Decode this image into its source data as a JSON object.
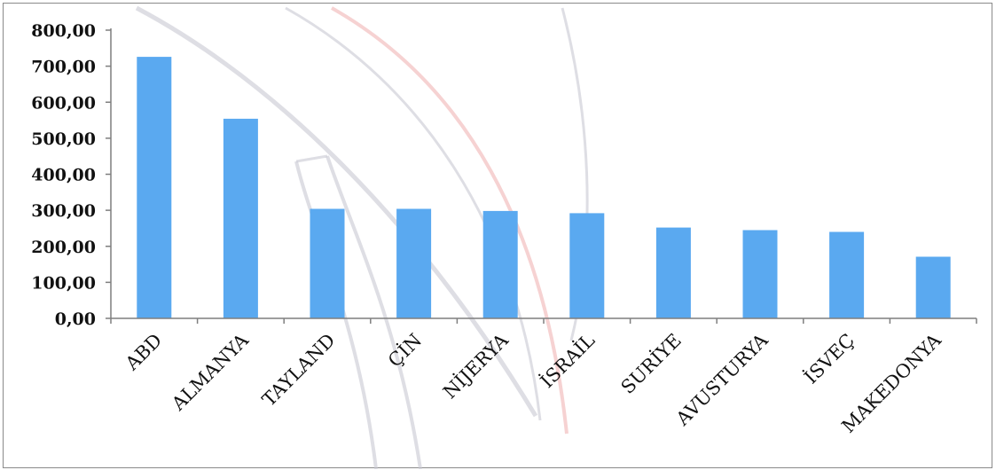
{
  "chart_data": {
    "type": "bar",
    "categories": [
      "ABD",
      "ALMANYA",
      "TAYLAND",
      "ÇİN",
      "NİJERYA",
      "İSRAİL",
      "SURİYE",
      "AVUSTURYA",
      "İSVEÇ",
      "MAKEDONYA"
    ],
    "values": [
      726,
      554,
      304,
      304,
      298,
      292,
      252,
      245,
      240,
      171
    ],
    "ylim": [
      0,
      800
    ],
    "yticks": [
      "0,00",
      "100,00",
      "200,00",
      "300,00",
      "400,00",
      "500,00",
      "600,00",
      "700,00",
      "800,00"
    ],
    "title": "",
    "xlabel": "",
    "ylabel": "",
    "grid": false,
    "legend": "none",
    "colors": {
      "bar": "#5aa9f0",
      "axis": "#7f7f7f",
      "watermark_gray": "#c8c8d2",
      "watermark_red": "#f0b4b4"
    }
  }
}
